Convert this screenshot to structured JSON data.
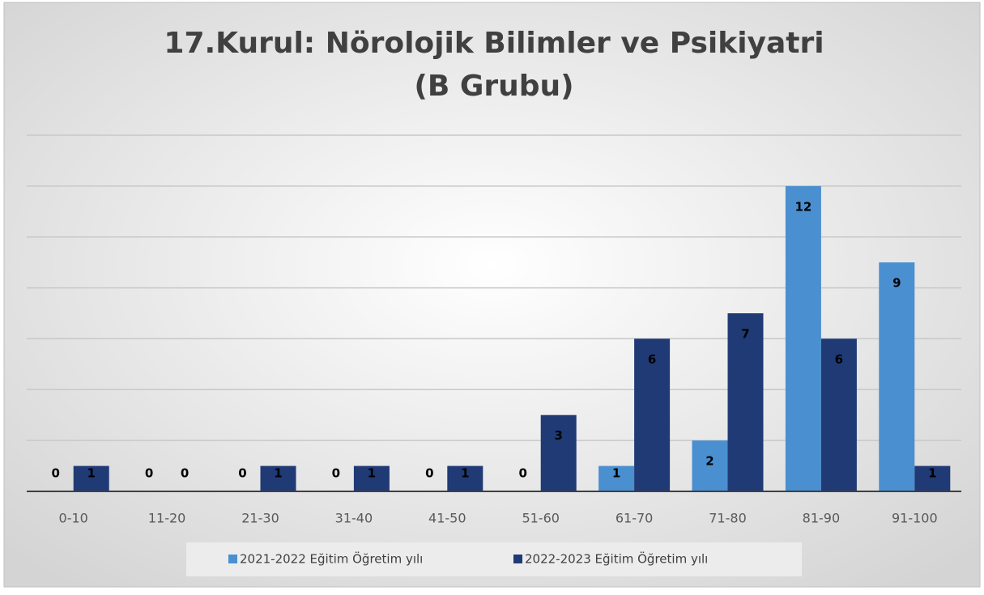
{
  "chart_data": {
    "type": "bar",
    "title": "17.Kurul: Nörolojik Bilimler ve Psikiyatri",
    "subtitle": "(B Grubu)",
    "categories": [
      "0-10",
      "11-20",
      "21-30",
      "31-40",
      "41-50",
      "51-60",
      "61-70",
      "71-80",
      "81-90",
      "91-100"
    ],
    "series": [
      {
        "name": "2021-2022 Eğitim Öğretim yılı",
        "color": "#4a8fd0",
        "values": [
          0,
          0,
          0,
          0,
          0,
          0,
          1,
          2,
          12,
          9
        ]
      },
      {
        "name": "2022-2023 Eğitim Öğretim yılı",
        "color": "#1f3a75",
        "values": [
          1,
          0,
          1,
          1,
          1,
          3,
          6,
          7,
          6,
          1
        ]
      }
    ],
    "ylim": [
      0,
      14
    ],
    "yticks": [
      0,
      2,
      4,
      6,
      8,
      10,
      12,
      14
    ],
    "grid": true,
    "legend": "bottom"
  }
}
